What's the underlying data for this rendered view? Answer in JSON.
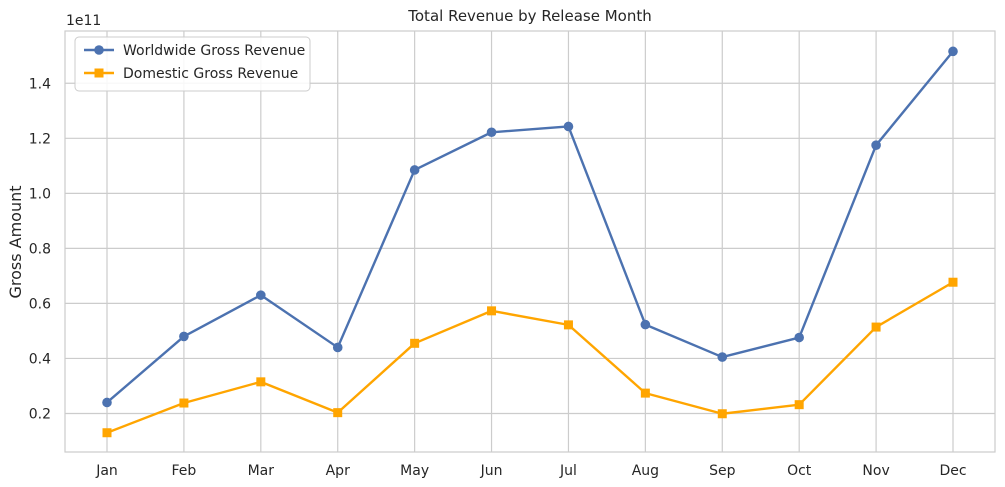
{
  "chart_data": {
    "type": "line",
    "title": "Total Revenue by Release Month",
    "xlabel": "",
    "ylabel": "Gross Amount",
    "y_offset_label": "1e11",
    "ylim": [
      0.06,
      1.59
    ],
    "y_ticks": [
      0.2,
      0.4,
      0.6,
      0.8,
      1.0,
      1.2,
      1.4
    ],
    "y_tick_labels": [
      "0.2",
      "0.4",
      "0.6",
      "0.8",
      "1.0",
      "1.2",
      "1.4"
    ],
    "categories": [
      "Jan",
      "Feb",
      "Mar",
      "Apr",
      "May",
      "Jun",
      "Jul",
      "Aug",
      "Sep",
      "Oct",
      "Nov",
      "Dec"
    ],
    "grid": true,
    "legend_position": "top-left",
    "series": [
      {
        "name": "Worldwide Gross Revenue",
        "color": "#4c72b0",
        "marker": "circle",
        "values": [
          0.24,
          0.48,
          0.63,
          0.44,
          1.085,
          1.222,
          1.243,
          0.523,
          0.405,
          0.476,
          1.175,
          1.516
        ]
      },
      {
        "name": "Domestic Gross Revenue",
        "color": "#ffa500",
        "marker": "square",
        "values": [
          0.13,
          0.238,
          0.315,
          0.203,
          0.455,
          0.573,
          0.522,
          0.274,
          0.199,
          0.232,
          0.514,
          0.677
        ]
      }
    ]
  }
}
